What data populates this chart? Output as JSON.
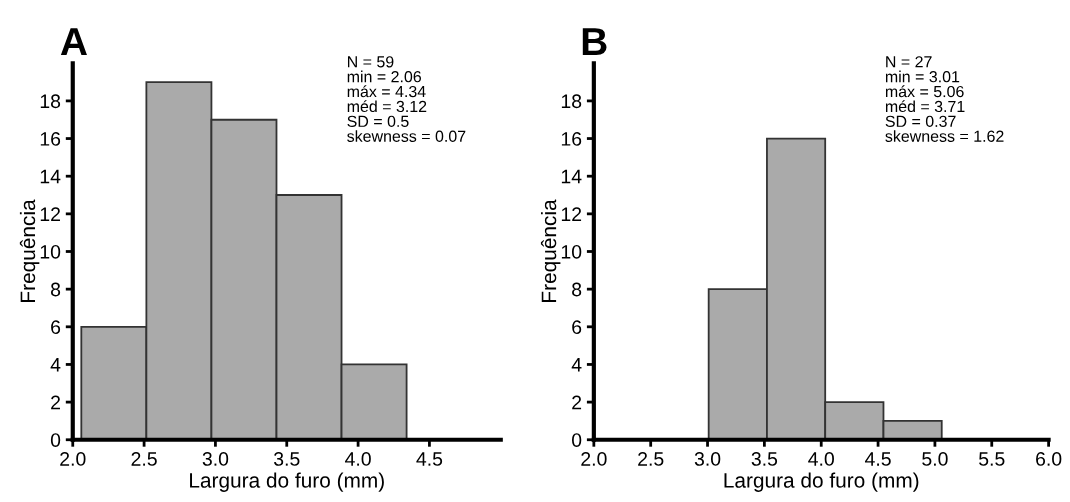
{
  "chart_data": [
    {
      "type": "histogram",
      "title": "A",
      "xlabel": "Largura do furo (mm)",
      "ylabel": "Frequência",
      "bins": [
        2.06,
        2.516,
        2.972,
        3.428,
        3.884,
        4.34
      ],
      "values": [
        6,
        19,
        17,
        13,
        4
      ],
      "color": "#aaaaaa",
      "xlim": [
        2.0,
        5.0
      ],
      "xticks": [
        {
          "value": 2.0,
          "label": "2.0"
        },
        {
          "value": 2.5,
          "label": "2.5"
        },
        {
          "value": 3.0,
          "label": "3.0"
        },
        {
          "value": 3.5,
          "label": "3.5"
        },
        {
          "value": 4.0,
          "label": "4.0"
        },
        {
          "value": 4.5,
          "label": "4.5"
        }
      ],
      "ylim": [
        0,
        20
      ],
      "yticks": [
        0,
        2,
        4,
        6,
        8,
        10,
        12,
        14,
        16,
        18
      ],
      "grid": false,
      "annotations": [
        "N = 59\nmin = 2.06\nmáx = 4.34\nméd = 3.12\nSD = 0.5\nskewness = 0.07"
      ]
    },
    {
      "type": "histogram",
      "title": "B",
      "xlabel": "Largura do furo (mm)",
      "ylabel": "Frequência",
      "bins": [
        3.01,
        3.5225,
        4.035,
        4.5475,
        5.06
      ],
      "values": [
        8,
        16,
        2,
        1
      ],
      "color": "#aaaaaa",
      "xlim": [
        2.0,
        6.0
      ],
      "xticks": [
        {
          "value": 2.0,
          "label": "2.0"
        },
        {
          "value": 2.5,
          "label": "2.5"
        },
        {
          "value": 3.0,
          "label": "3.0"
        },
        {
          "value": 3.5,
          "label": "3.5"
        },
        {
          "value": 4.0,
          "label": "4.0"
        },
        {
          "value": 4.5,
          "label": "4.5"
        },
        {
          "value": 5.0,
          "label": "5.0"
        },
        {
          "value": 5.5,
          "label": "5.5"
        },
        {
          "value": 6.0,
          "label": "6.0"
        }
      ],
      "ylim": [
        0,
        20
      ],
      "yticks": [
        0,
        2,
        4,
        6,
        8,
        10,
        12,
        14,
        16,
        18
      ],
      "grid": false,
      "annotations": [
        "N = 27\nmin = 3.01\nmáx = 5.06\nméd = 3.71\nSD = 0.37\nskewness = 1.62"
      ]
    }
  ]
}
